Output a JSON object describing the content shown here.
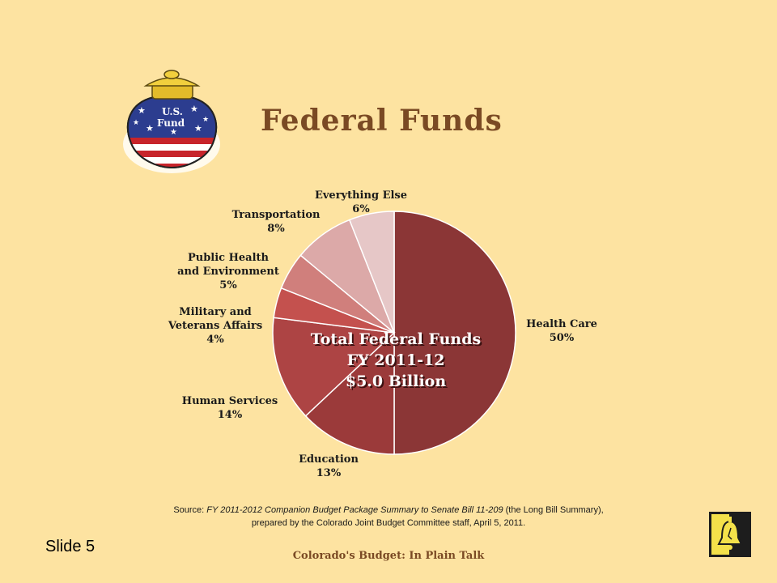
{
  "slide": {
    "title": "Federal Funds",
    "slide_number": "Slide 5",
    "footer": "Colorado's Budget: In Plain Talk",
    "source_prefix": "Source: ",
    "source_italic": "FY 2011-2012 Companion Budget Package Summary to Senate Bill 11-209",
    "source_rest1": " (the Long Bill Summary),",
    "source_line2": "prepared by the Colorado Joint Budget Committee staff, April 5, 2011.",
    "pot_label_line1": "U.S.",
    "pot_label_line2": "Fund"
  },
  "chart_data": {
    "type": "pie",
    "center_label": [
      "Total Federal Funds",
      "FY 2011-12",
      "$5.0 Billion"
    ],
    "slices": [
      {
        "label": [
          "Health Care"
        ],
        "pct_text": "50%",
        "value": 50,
        "color": "#8b3636"
      },
      {
        "label": [
          "Education"
        ],
        "pct_text": "13%",
        "value": 13,
        "color": "#9b3a3a"
      },
      {
        "label": [
          "Human Services"
        ],
        "pct_text": "14%",
        "value": 14,
        "color": "#ad4444"
      },
      {
        "label": [
          "Military and",
          "Veterans Affairs"
        ],
        "pct_text": "4%",
        "value": 4,
        "color": "#c4514e"
      },
      {
        "label": [
          "Public Health",
          "and Environment"
        ],
        "pct_text": "5%",
        "value": 5,
        "color": "#d07f7c"
      },
      {
        "label": [
          "Transportation"
        ],
        "pct_text": "8%",
        "value": 8,
        "color": "#dca9a8"
      },
      {
        "label": [
          "Everything Else"
        ],
        "pct_text": "6%",
        "value": 6,
        "color": "#e6c7c7"
      }
    ]
  }
}
